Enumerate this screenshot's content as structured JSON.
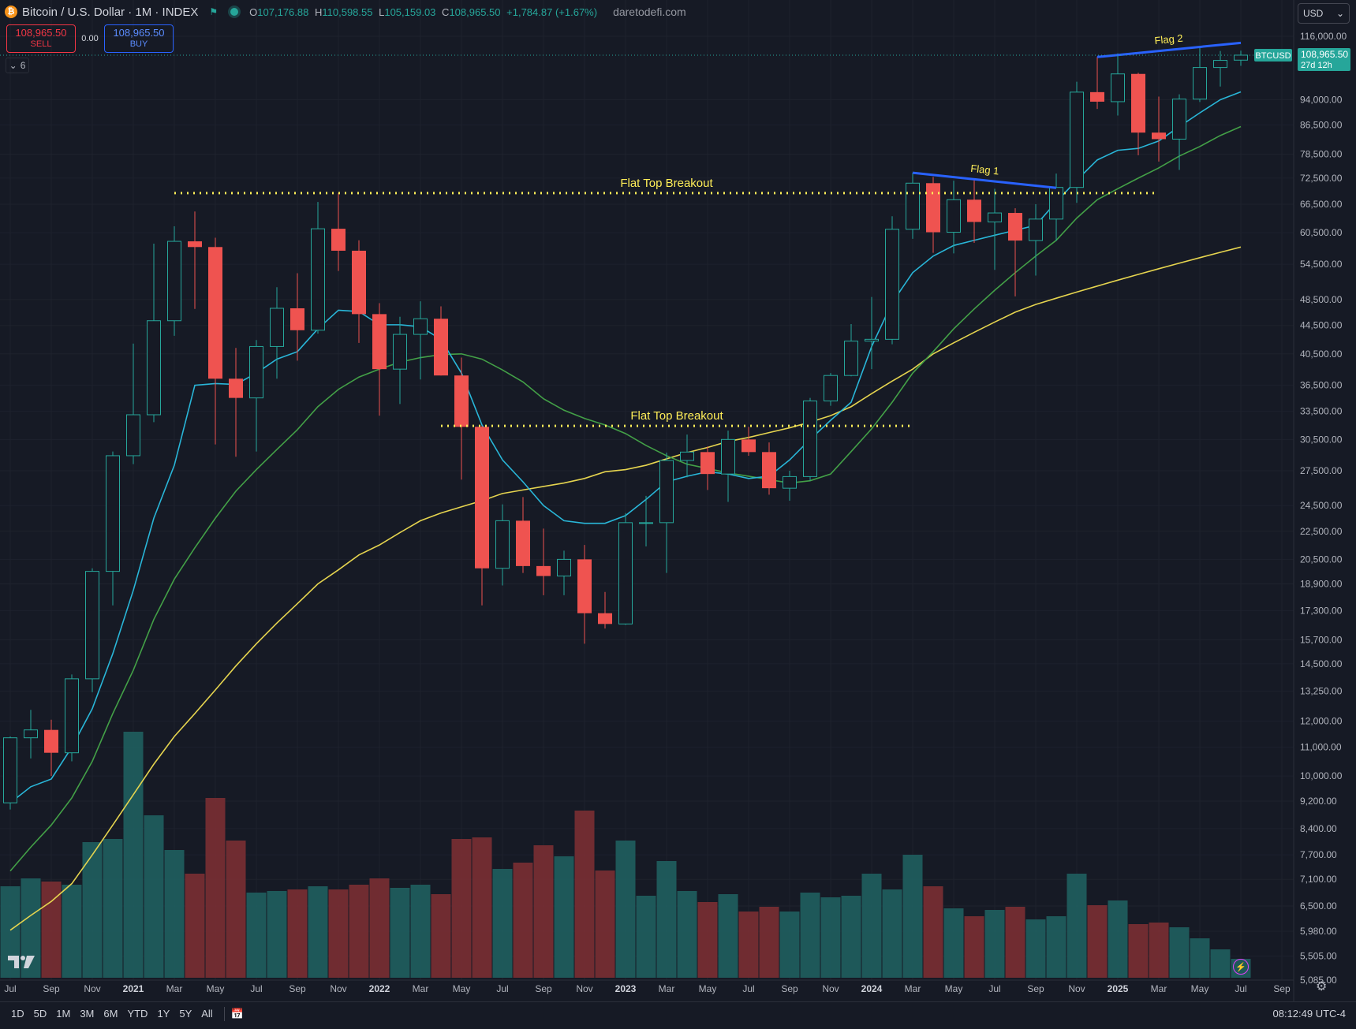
{
  "header": {
    "symbol_icon": "bitcoin-icon",
    "title": "Bitcoin / U.S. Dollar · 1M · INDEX",
    "ohlc": {
      "o_label": "O",
      "o": "107,176.88",
      "h_label": "H",
      "h": "110,598.55",
      "l_label": "L",
      "l": "105,159.03",
      "c_label": "C",
      "c": "108,965.50",
      "change": "+1,784.87 (+1.67%)"
    },
    "watermark": "daretodefi.com"
  },
  "trade": {
    "sell_price": "108,965.50",
    "sell_label": "SELL",
    "spread": "0.00",
    "buy_price": "108,965.50",
    "buy_label": "BUY"
  },
  "indicators_count": "6",
  "currency": "USD",
  "price_tag": {
    "symbol": "BTCUSD",
    "price": "108,965.50",
    "countdown": "27d 12h"
  },
  "timeframes": [
    "1D",
    "5D",
    "1M",
    "3M",
    "6M",
    "YTD",
    "1Y",
    "5Y",
    "All"
  ],
  "clock": "08:12:49 UTC-4",
  "colors": {
    "up": "#26a69a",
    "down": "#ef5350",
    "vol_up": "#1f5f5f",
    "vol_down": "#7a2f33",
    "ema_fast": "#29b6d8",
    "ema_mid": "#43a047",
    "ema_slow": "#e5d44f",
    "resistance": "#ffee58",
    "flag": "#2962ff",
    "background": "#161a25",
    "grid": "#1e222d"
  },
  "chart_data": {
    "type": "candlestick",
    "y_scale": "log",
    "y_ticks": [
      5085,
      5505,
      5980,
      6500,
      7100,
      7700,
      8400,
      9200,
      10000,
      11000,
      12000,
      13250,
      14500,
      15700,
      17300,
      18900,
      20500,
      22500,
      24500,
      27500,
      30500,
      33500,
      36500,
      40500,
      44500,
      48500,
      54500,
      60500,
      66500,
      72500,
      78500,
      86500,
      94000,
      116000
    ],
    "y_tick_labels": [
      "5,085.00",
      "5,505.00",
      "5,980.00",
      "6,500.00",
      "7,100.00",
      "7,700.00",
      "8,400.00",
      "9,200.00",
      "10,000.00",
      "11,000.00",
      "12,000.00",
      "13,250.00",
      "14,500.00",
      "15,700.00",
      "17,300.00",
      "18,900.00",
      "20,500.00",
      "22,500.00",
      "24,500.00",
      "27,500.00",
      "30,500.00",
      "33,500.00",
      "36,500.00",
      "40,500.00",
      "44,500.00",
      "48,500.00",
      "54,500.00",
      "60,500.00",
      "66,500.00",
      "72,500.00",
      "78,500.00",
      "86,500.00",
      "94,000.00",
      "116,000.00"
    ],
    "x_labels": [
      "Jul",
      "Sep",
      "Nov",
      "2021",
      "Mar",
      "May",
      "Jul",
      "Sep",
      "Nov",
      "2022",
      "Mar",
      "May",
      "Jul",
      "Sep",
      "Nov",
      "2023",
      "Mar",
      "May",
      "Jul",
      "Sep",
      "Nov",
      "2024",
      "Mar",
      "May",
      "Jul",
      "Sep",
      "Nov",
      "2025",
      "Mar",
      "May",
      "Jul",
      "Sep"
    ],
    "months": [
      "2020-07",
      "2020-08",
      "2020-09",
      "2020-10",
      "2020-11",
      "2020-12",
      "2021-01",
      "2021-02",
      "2021-03",
      "2021-04",
      "2021-05",
      "2021-06",
      "2021-07",
      "2021-08",
      "2021-09",
      "2021-10",
      "2021-11",
      "2021-12",
      "2022-01",
      "2022-02",
      "2022-03",
      "2022-04",
      "2022-05",
      "2022-06",
      "2022-07",
      "2022-08",
      "2022-09",
      "2022-10",
      "2022-11",
      "2022-12",
      "2023-01",
      "2023-02",
      "2023-03",
      "2023-04",
      "2023-05",
      "2023-06",
      "2023-07",
      "2023-08",
      "2023-09",
      "2023-10",
      "2023-11",
      "2023-12",
      "2024-01",
      "2024-02",
      "2024-03",
      "2024-04",
      "2024-05",
      "2024-06",
      "2024-07",
      "2024-08",
      "2024-09",
      "2024-10",
      "2024-11",
      "2024-12",
      "2025-01",
      "2025-02",
      "2025-03",
      "2025-04",
      "2025-05",
      "2025-06",
      "2025-07"
    ],
    "ohlc": [
      [
        9150,
        11400,
        8950,
        11350
      ],
      [
        11350,
        12450,
        10600,
        11650
      ],
      [
        11650,
        12050,
        10000,
        10800
      ],
      [
        10800,
        14000,
        10500,
        13800
      ],
      [
        13800,
        19900,
        13200,
        19700
      ],
      [
        19700,
        29300,
        17600,
        28900
      ],
      [
        28900,
        41900,
        28100,
        33100
      ],
      [
        33100,
        58350,
        32300,
        45200
      ],
      [
        45200,
        61800,
        43000,
        58800
      ],
      [
        58800,
        64900,
        47000,
        57700
      ],
      [
        57700,
        59500,
        30000,
        37300
      ],
      [
        37300,
        41300,
        28800,
        35000
      ],
      [
        35000,
        42400,
        29300,
        41500
      ],
      [
        41500,
        50500,
        37300,
        47100
      ],
      [
        47100,
        52900,
        39600,
        43800
      ],
      [
        43800,
        67000,
        43300,
        61300
      ],
      [
        61300,
        69000,
        53300,
        57000
      ],
      [
        57000,
        59000,
        42000,
        46200
      ],
      [
        46200,
        47900,
        33000,
        38500
      ],
      [
        38500,
        45800,
        34300,
        43200
      ],
      [
        43200,
        48200,
        37200,
        45500
      ],
      [
        45500,
        47400,
        37700,
        37700
      ],
      [
        37700,
        40000,
        26700,
        31800
      ],
      [
        31800,
        31900,
        17600,
        19900
      ],
      [
        19900,
        24600,
        18800,
        23300
      ],
      [
        23300,
        25200,
        19600,
        20050
      ],
      [
        20050,
        22700,
        18200,
        19400
      ],
      [
        19400,
        21100,
        18200,
        20500
      ],
      [
        20500,
        21500,
        15500,
        17150
      ],
      [
        17150,
        18400,
        16300,
        16550
      ],
      [
        16550,
        23900,
        16500,
        23150
      ],
      [
        23150,
        25300,
        21400,
        23150
      ],
      [
        23150,
        29200,
        19600,
        28450
      ],
      [
        28450,
        31000,
        26900,
        29250
      ],
      [
        29250,
        29800,
        25800,
        27200
      ],
      [
        27200,
        31400,
        24800,
        30500
      ],
      [
        30500,
        31800,
        28900,
        29250
      ],
      [
        29250,
        30200,
        25400,
        25950
      ],
      [
        25950,
        27500,
        24900,
        26970
      ],
      [
        26970,
        35000,
        26600,
        34650
      ],
      [
        34650,
        38000,
        34100,
        37700
      ],
      [
        37700,
        44700,
        37600,
        42250
      ],
      [
        42250,
        48900,
        38500,
        42500
      ],
      [
        42500,
        63900,
        41800,
        61200
      ],
      [
        61200,
        73800,
        59300,
        71300
      ],
      [
        71300,
        72800,
        56600,
        60600
      ],
      [
        60600,
        71900,
        56500,
        67500
      ],
      [
        67500,
        72000,
        58500,
        62700
      ],
      [
        62700,
        70000,
        53500,
        64600
      ],
      [
        64600,
        65600,
        49000,
        58950
      ],
      [
        58950,
        66500,
        52500,
        63300
      ],
      [
        63300,
        73600,
        58900,
        70300
      ],
      [
        70300,
        99800,
        66800,
        96400
      ],
      [
        96400,
        108300,
        91200,
        93400
      ],
      [
        93400,
        109600,
        89200,
        102400
      ],
      [
        102400,
        102800,
        78200,
        84300
      ],
      [
        84300,
        95000,
        76600,
        82500
      ],
      [
        82500,
        95700,
        74500,
        94200
      ],
      [
        94200,
        111900,
        93300,
        104600
      ],
      [
        104600,
        110500,
        98200,
        107100
      ],
      [
        107176.88,
        110598.55,
        105159.03,
        108965.5
      ]
    ],
    "volume": [
      5.8,
      6.3,
      6.1,
      5.9,
      8.6,
      8.8,
      15.6,
      10.3,
      8.1,
      6.6,
      11.4,
      8.7,
      5.4,
      5.5,
      5.6,
      5.8,
      5.6,
      5.9,
      6.3,
      5.7,
      5.9,
      5.3,
      8.8,
      8.9,
      6.9,
      7.3,
      8.4,
      7.7,
      10.6,
      6.8,
      8.7,
      5.2,
      7.4,
      5.5,
      4.8,
      5.3,
      4.2,
      4.5,
      4.2,
      5.4,
      5.1,
      5.2,
      6.6,
      5.6,
      7.8,
      5.8,
      4.4,
      3.9,
      4.3,
      4.5,
      3.7,
      3.9,
      6.6,
      4.6,
      4.9,
      3.4,
      3.5,
      3.2,
      2.5,
      1.8,
      1.2
    ],
    "ema_fast": [
      9150,
      9650,
      9900,
      11000,
      12500,
      15000,
      18500,
      23500,
      28000,
      36500,
      36700,
      36600,
      38000,
      39800,
      40800,
      44000,
      46800,
      46600,
      44600,
      44600,
      44300,
      42500,
      38000,
      32000,
      28500,
      26500,
      24500,
      23300,
      23100,
      23100,
      23700,
      25000,
      26500,
      27000,
      27400,
      27200,
      26800,
      27000,
      28500,
      30500,
      32500,
      34500,
      41500,
      48000,
      53000,
      56000,
      58000,
      59000,
      60000,
      61000,
      62000,
      67000,
      72000,
      77000,
      79500,
      80000,
      82000,
      86000,
      90000,
      94000,
      96500
    ],
    "ema_mid": [
      7300,
      7900,
      8500,
      9300,
      10500,
      12300,
      14200,
      16800,
      19200,
      21300,
      23500,
      25700,
      27600,
      29500,
      31500,
      34000,
      36000,
      37500,
      38500,
      39400,
      40000,
      40400,
      40500,
      39800,
      38400,
      36900,
      34900,
      33600,
      32700,
      32000,
      31100,
      29900,
      28900,
      28100,
      27700,
      27300,
      27000,
      26700,
      26400,
      26600,
      27200,
      29300,
      31600,
      34500,
      38000,
      40800,
      44000,
      47000,
      50000,
      53000,
      56000,
      59000,
      63500,
      67500,
      70000,
      72500,
      75000,
      78000,
      80500,
      83500,
      86000
    ],
    "ema_slow": [
      6000,
      6300,
      6600,
      7000,
      7700,
      8500,
      9400,
      10400,
      11400,
      12300,
      13300,
      14400,
      15500,
      16600,
      17700,
      18900,
      19800,
      20800,
      21500,
      22400,
      23300,
      23900,
      24400,
      24900,
      25500,
      25800,
      26100,
      26400,
      26800,
      27400,
      27600,
      28000,
      28600,
      29200,
      29700,
      30300,
      30700,
      31200,
      31700,
      32300,
      33000,
      34000,
      35500,
      37000,
      38500,
      40500,
      42000,
      43500,
      45000,
      46500,
      47700,
      48700,
      49700,
      50700,
      51700,
      52700,
      53700,
      54700,
      55700,
      56700,
      57700
    ],
    "annotations": [
      {
        "text": "Flat Top Breakout",
        "type": "horizontal-resistance",
        "value": 69000,
        "from": "2021-03",
        "to": "2025-03"
      },
      {
        "text": "Flat Top Breakout",
        "type": "horizontal-resistance",
        "value": 31900,
        "from": "2022-04",
        "to": "2024-03"
      },
      {
        "text": "Flag 1",
        "type": "trendline",
        "points": [
          [
            "2024-03",
            73800
          ],
          [
            "2024-10",
            70200
          ]
        ]
      },
      {
        "text": "Flag 2",
        "type": "trendline",
        "points": [
          [
            "2024-12",
            108300
          ],
          [
            "2025-07",
            113500
          ]
        ]
      }
    ],
    "last_price": 108965.5
  }
}
